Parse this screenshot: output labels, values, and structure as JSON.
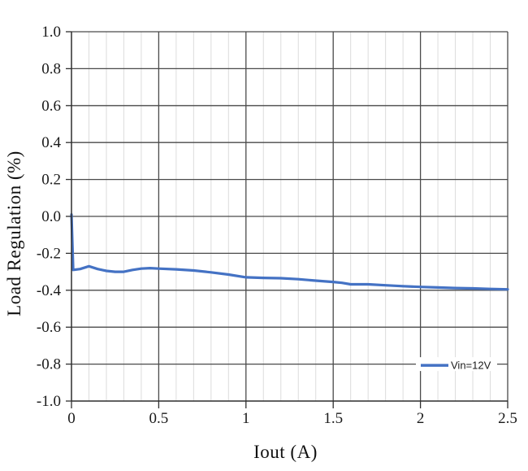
{
  "chart_data": {
    "type": "line",
    "title": "",
    "xlabel": "Iout (A)",
    "ylabel": "Load Regulation (%)",
    "xlim": [
      0,
      2.5
    ],
    "ylim": [
      -1.0,
      1.0
    ],
    "x_tick_labels": [
      "0",
      "0.5",
      "1",
      "1.5",
      "2",
      "2.5"
    ],
    "x_tick_values": [
      0,
      0.5,
      1,
      1.5,
      2,
      2.5
    ],
    "x_minor_step": 0.1,
    "y_tick_labels": [
      "1.0",
      "0.8",
      "0.6",
      "0.4",
      "0.2",
      "0.0",
      "-0.2",
      "-0.4",
      "-0.6",
      "-0.8",
      "-1.0"
    ],
    "y_tick_values": [
      1.0,
      0.8,
      0.6,
      0.4,
      0.2,
      0.0,
      -0.2,
      -0.4,
      -0.6,
      -0.8,
      -1.0
    ],
    "grid": {
      "horizontal_major": true,
      "vertical_major": true,
      "vertical_minor": true,
      "major_color": "#4a4a4a",
      "minor_color": "#dcdcdc",
      "axis_color": "#2f2f2f"
    },
    "legend": {
      "label": "Vin=12V",
      "position": "inside-bottom-right"
    },
    "series": [
      {
        "name": "Vin=12V",
        "color": "#4472C4",
        "x": [
          0,
          0.01,
          0.05,
          0.1,
          0.15,
          0.2,
          0.25,
          0.3,
          0.35,
          0.4,
          0.45,
          0.5,
          0.6,
          0.7,
          0.8,
          0.9,
          1.0,
          1.1,
          1.2,
          1.3,
          1.4,
          1.5,
          1.55,
          1.6,
          1.7,
          1.8,
          1.9,
          2.0,
          2.1,
          2.2,
          2.3,
          2.4,
          2.5
        ],
        "y": [
          0.01,
          -0.29,
          -0.285,
          -0.27,
          -0.285,
          -0.295,
          -0.3,
          -0.3,
          -0.29,
          -0.283,
          -0.28,
          -0.283,
          -0.287,
          -0.293,
          -0.303,
          -0.315,
          -0.33,
          -0.333,
          -0.335,
          -0.34,
          -0.348,
          -0.355,
          -0.36,
          -0.368,
          -0.368,
          -0.373,
          -0.378,
          -0.382,
          -0.385,
          -0.388,
          -0.39,
          -0.393,
          -0.395
        ]
      }
    ]
  },
  "colors": {
    "background": "#ffffff",
    "accent_blue": "#4472C4",
    "text": "#1a1a1a"
  }
}
